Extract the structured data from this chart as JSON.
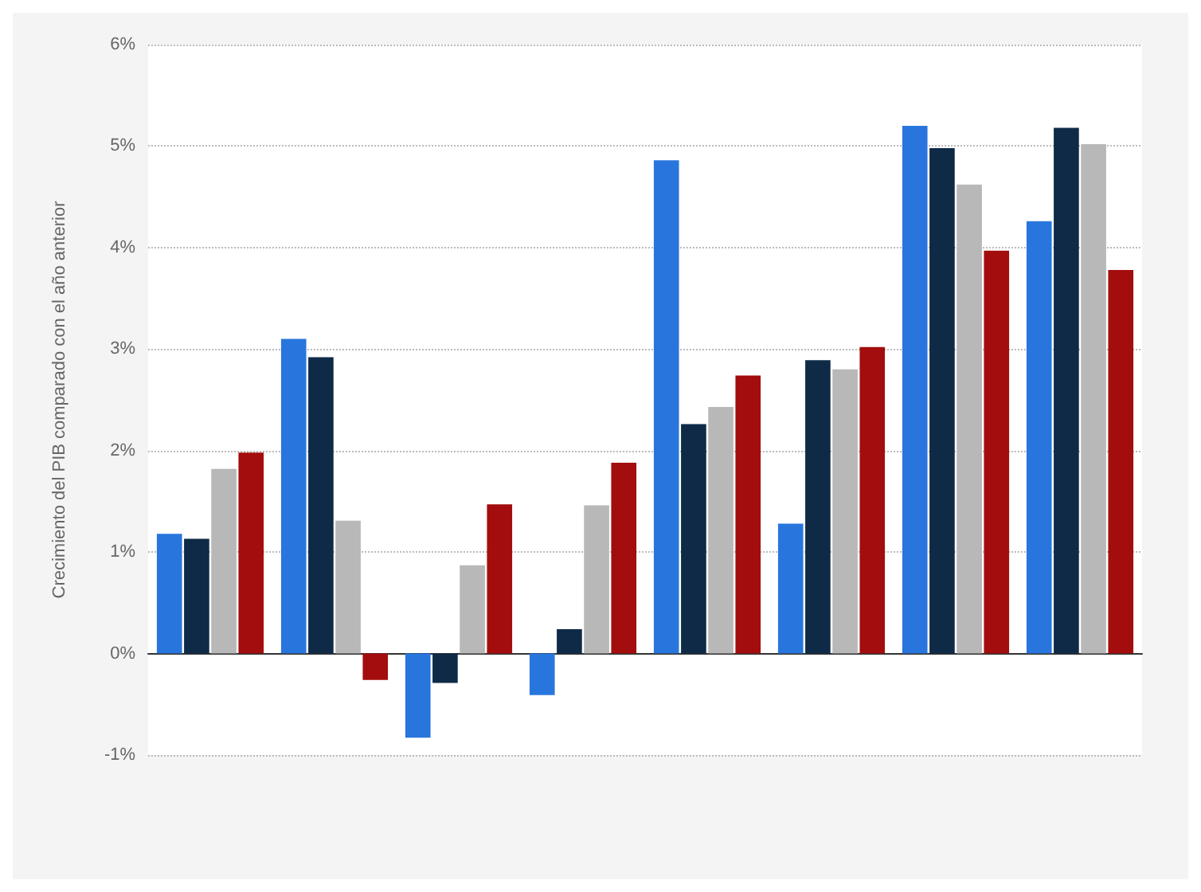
{
  "chart_data": {
    "type": "bar",
    "ylabel": "Crecimiento del PIB comparado con el año anterior",
    "categories": [
      null,
      null,
      null,
      null,
      null,
      null,
      null,
      null
    ],
    "series": [
      {
        "color": "#2876dd",
        "values": [
          1.18,
          3.1,
          -0.83,
          -0.41,
          4.86,
          1.28,
          5.2,
          4.26
        ]
      },
      {
        "color": "#0e2a47",
        "values": [
          1.13,
          2.92,
          -0.29,
          0.24,
          2.26,
          2.89,
          4.98,
          5.18
        ]
      },
      {
        "color": "#b8b8b8",
        "values": [
          1.82,
          1.31,
          0.87,
          1.46,
          2.43,
          2.8,
          4.62,
          5.02
        ]
      },
      {
        "color": "#a30d0d",
        "values": [
          1.98,
          -0.26,
          1.47,
          1.88,
          2.74,
          3.02,
          3.97,
          3.78
        ]
      }
    ],
    "ylim": [
      -1,
      6
    ],
    "yticks": [
      {
        "value": -1,
        "label": "-1%"
      },
      {
        "value": 0,
        "label": "0%"
      },
      {
        "value": 1,
        "label": "1%"
      },
      {
        "value": 2,
        "label": "2%"
      },
      {
        "value": 3,
        "label": "3%"
      },
      {
        "value": 4,
        "label": "4%"
      },
      {
        "value": 5,
        "label": "5%"
      },
      {
        "value": 6,
        "label": "6%"
      }
    ],
    "grid": "y"
  }
}
